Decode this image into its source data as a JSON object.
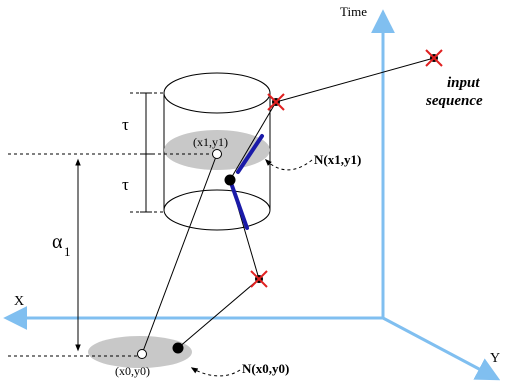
{
  "axes": {
    "time": "Time",
    "x": "X",
    "y": "Y"
  },
  "labels": {
    "input_sequence_line1": "input",
    "input_sequence_line2": "sequence",
    "tau_upper": "τ",
    "tau_lower": "τ",
    "alpha": "α",
    "alpha_subscript": "1",
    "point_x1y1": "(x1,y1)",
    "point_x0y0": "(x0,y0)",
    "neighborhood_x1y1": "N(x1,y1)",
    "neighborhood_x0y0": "N(x0,y0)"
  },
  "colors": {
    "axis": "#80bff0",
    "region": "#c8c8c8",
    "highlight_segment": "#1a1aa8",
    "cross_marker": "#e02020",
    "line": "#000000"
  }
}
